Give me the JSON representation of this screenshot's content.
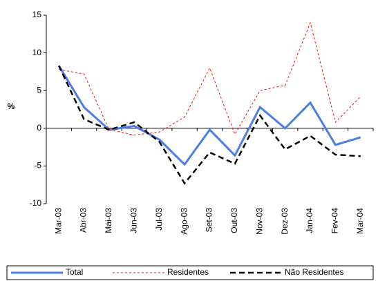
{
  "chart_data": {
    "type": "line",
    "y_label": "%",
    "categories": [
      "Mar-03",
      "Abr-03",
      "Mai-03",
      "Jun-03",
      "Jul-03",
      "Ago-03",
      "Set-03",
      "Out-03",
      "Nov-03",
      "Dez-03",
      "Jan-04",
      "Fev-04",
      "Mar-04"
    ],
    "series": [
      {
        "name": "Total",
        "color": "#4a7ee6",
        "values": [
          8.3,
          2.8,
          -0.2,
          0.3,
          -1.5,
          -4.8,
          -0.2,
          -3.6,
          2.8,
          0.0,
          3.4,
          -2.2,
          -1.2
        ]
      },
      {
        "name": "Residentes",
        "color": "#ff0000",
        "values": [
          7.8,
          7.2,
          -0.2,
          -0.9,
          -0.5,
          1.5,
          8.0,
          -0.8,
          5.0,
          5.7,
          14.0,
          0.8,
          4.2
        ]
      },
      {
        "name": "Não Residentes",
        "color": "#000000",
        "values": [
          8.3,
          1.2,
          -0.2,
          0.8,
          -1.8,
          -7.3,
          -3.2,
          -4.7,
          1.7,
          -2.8,
          -1.0,
          -3.5,
          -3.7
        ]
      }
    ],
    "ylim": [
      -10,
      15
    ],
    "yticks": [
      -10,
      -5,
      0,
      5,
      10,
      15
    ]
  }
}
